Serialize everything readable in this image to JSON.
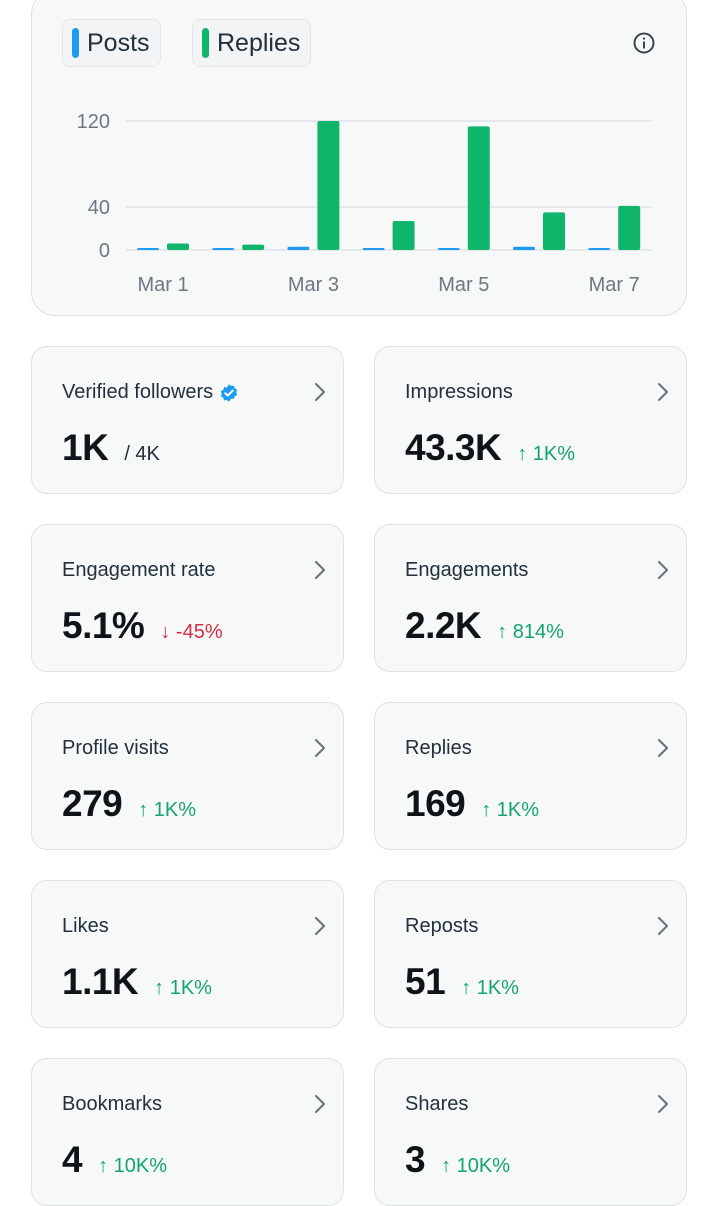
{
  "legend": {
    "posts": {
      "label": "Posts",
      "color": "#1d9bf0"
    },
    "replies": {
      "label": "Replies",
      "color": "#0fb56b"
    }
  },
  "chart_data": {
    "type": "bar",
    "categories": [
      "Mar 1",
      "Mar 2",
      "Mar 3",
      "Mar 4",
      "Mar 5",
      "Mar 6",
      "Mar 7"
    ],
    "x_tick_labels": [
      "Mar 1",
      "Mar 3",
      "Mar 5",
      "Mar 7"
    ],
    "y_ticks": [
      0,
      40,
      120
    ],
    "ylim": [
      0,
      120
    ],
    "series": [
      {
        "name": "Posts",
        "color": "#1d9bf0",
        "values": [
          1,
          0,
          3,
          1,
          1,
          3,
          1
        ]
      },
      {
        "name": "Replies",
        "color": "#0fb56b",
        "values": [
          6,
          5,
          120,
          27,
          115,
          35,
          41
        ]
      }
    ],
    "title": "",
    "xlabel": "",
    "ylabel": "",
    "grid": true
  },
  "metrics": [
    {
      "label": "Verified followers",
      "value": "1K",
      "sub": "/ 4K",
      "delta": "",
      "direction": "none",
      "verified": true
    },
    {
      "label": "Impressions",
      "value": "43.3K",
      "sub": "",
      "delta": "1K%",
      "direction": "up"
    },
    {
      "label": "Engagement rate",
      "value": "5.1%",
      "sub": "",
      "delta": "-45%",
      "direction": "down"
    },
    {
      "label": "Engagements",
      "value": "2.2K",
      "sub": "",
      "delta": "814%",
      "direction": "up"
    },
    {
      "label": "Profile visits",
      "value": "279",
      "sub": "",
      "delta": "1K%",
      "direction": "up"
    },
    {
      "label": "Replies",
      "value": "169",
      "sub": "",
      "delta": "1K%",
      "direction": "up"
    },
    {
      "label": "Likes",
      "value": "1.1K",
      "sub": "",
      "delta": "1K%",
      "direction": "up"
    },
    {
      "label": "Reposts",
      "value": "51",
      "sub": "",
      "delta": "1K%",
      "direction": "up"
    },
    {
      "label": "Bookmarks",
      "value": "4",
      "sub": "",
      "delta": "10K%",
      "direction": "up"
    },
    {
      "label": "Shares",
      "value": "3",
      "sub": "",
      "delta": "10K%",
      "direction": "up"
    }
  ],
  "icons": {
    "info": "info-icon",
    "chevron": "chevron-right-icon",
    "verified": "verified-badge-icon",
    "arrow_up": "arrow-up-icon",
    "arrow_down": "arrow-down-icon"
  }
}
